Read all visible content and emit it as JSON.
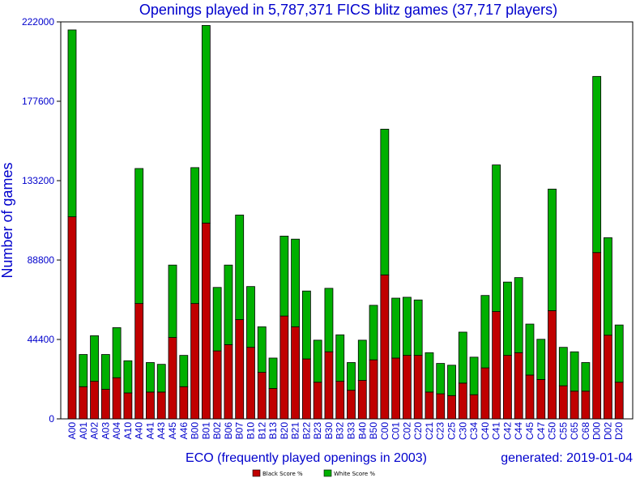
{
  "chart_data": {
    "type": "bar",
    "stacked": true,
    "title": "Openings played in 5,787,371 FICS blitz games (37,717 players)",
    "xlabel": "ECO (frequently played openings in 2003)",
    "ylabel": "Number of games",
    "footer_note": "generated: 2019-01-04",
    "ylim": [
      0,
      222000
    ],
    "yticks": [
      "0",
      "44400",
      "88800",
      "133200",
      "177600",
      "222000"
    ],
    "ytick_values": [
      0,
      44400,
      88800,
      133200,
      177600,
      222000
    ],
    "grid": false,
    "legend_position": "bottom-center",
    "categories": [
      "A00",
      "A01",
      "A02",
      "A03",
      "A04",
      "A10",
      "A40",
      "A41",
      "A43",
      "A45",
      "A46",
      "B00",
      "B01",
      "B02",
      "B06",
      "B07",
      "B10",
      "B12",
      "B13",
      "B20",
      "B21",
      "B22",
      "B23",
      "B30",
      "B32",
      "B33",
      "B40",
      "B50",
      "C00",
      "C01",
      "C02",
      "C20",
      "C21",
      "C23",
      "C25",
      "C30",
      "C34",
      "C40",
      "C41",
      "C42",
      "C44",
      "C45",
      "C47",
      "C50",
      "C55",
      "C65",
      "C68",
      "D00",
      "D02",
      "D20"
    ],
    "series": [
      {
        "name": "Black Score %",
        "color": "#c00000",
        "values": [
          113000,
          18000,
          21000,
          16500,
          23000,
          14500,
          64500,
          15000,
          15000,
          45500,
          18000,
          64500,
          109500,
          38000,
          41500,
          55500,
          40000,
          26000,
          17000,
          57500,
          51500,
          33500,
          20500,
          37500,
          21000,
          16000,
          21500,
          33000,
          80500,
          34000,
          35500,
          35500,
          15000,
          14000,
          13000,
          20000,
          13500,
          28500,
          60000,
          35500,
          37000,
          24500,
          22000,
          60500,
          18500,
          15500,
          15500,
          93000,
          46800,
          20500
        ]
      },
      {
        "name": "White Score %",
        "color": "#00b000",
        "values": [
          104500,
          18000,
          25500,
          19500,
          28000,
          18000,
          75500,
          16500,
          15500,
          40500,
          17500,
          76000,
          110500,
          35500,
          44500,
          58500,
          34000,
          25500,
          17000,
          44700,
          49000,
          38000,
          23500,
          35500,
          26000,
          15500,
          22500,
          30500,
          81500,
          33500,
          32500,
          31000,
          22000,
          17000,
          17000,
          28500,
          21000,
          40500,
          82000,
          41000,
          42000,
          28500,
          22500,
          68000,
          21500,
          22000,
          16000,
          98500,
          54500,
          32000
        ]
      }
    ]
  }
}
